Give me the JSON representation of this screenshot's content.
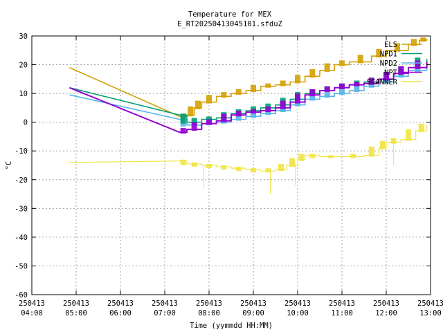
{
  "chart_data": {
    "type": "line",
    "title": "Temperature for MEX",
    "subtitle": "E_RT20250413045101.sfduZ",
    "xlabel": "Time (yymmdd HH:MM)",
    "ylabel": "°C",
    "xlim": [
      "2025-04-13 04:00",
      "2025-04-13 13:00"
    ],
    "ylim": [
      -60,
      30
    ],
    "grid": true,
    "legend_position": "top-right",
    "x_ticks": [
      {
        "date": "250413",
        "time": "04:00",
        "t": "04:00"
      },
      {
        "date": "250413",
        "time": "05:00",
        "t": "05:00"
      },
      {
        "date": "250413",
        "time": "06:00",
        "t": "06:00"
      },
      {
        "date": "250413",
        "time": "07:00",
        "t": "07:00"
      },
      {
        "date": "250413",
        "time": "08:00",
        "t": "08:00"
      },
      {
        "date": "250413",
        "time": "09:00",
        "t": "09:00"
      },
      {
        "date": "250413",
        "time": "10:00",
        "t": "10:00"
      },
      {
        "date": "250413",
        "time": "11:00",
        "t": "11:00"
      },
      {
        "date": "250413",
        "time": "12:00",
        "t": "12:00"
      },
      {
        "date": "250413",
        "time": "13:00",
        "t": "13:00"
      }
    ],
    "y_ticks": [
      30,
      20,
      10,
      0,
      -10,
      -20,
      -30,
      -40,
      -50,
      -60
    ],
    "series": [
      {
        "name": "ELS",
        "color": "#d4a000",
        "points": [
          [
            "04:51",
            19
          ],
          [
            "07:20",
            2
          ],
          [
            "07:30",
            2.5
          ],
          [
            "07:40",
            5
          ],
          [
            "07:50",
            7
          ],
          [
            "08:10",
            9
          ],
          [
            "08:30",
            10
          ],
          [
            "08:50",
            11
          ],
          [
            "09:10",
            12.5
          ],
          [
            "09:30",
            13
          ],
          [
            "09:50",
            14
          ],
          [
            "10:10",
            16
          ],
          [
            "10:30",
            18
          ],
          [
            "10:50",
            20
          ],
          [
            "11:10",
            21
          ],
          [
            "11:40",
            23
          ],
          [
            "12:00",
            25
          ],
          [
            "12:30",
            27
          ],
          [
            "12:45",
            28.5
          ],
          [
            "12:55",
            29
          ]
        ]
      },
      {
        "name": "NPD1",
        "color": "#009e73",
        "points": [
          [
            "04:51",
            12
          ],
          [
            "07:20",
            2.5
          ],
          [
            "07:30",
            0
          ],
          [
            "07:50",
            1
          ],
          [
            "08:10",
            1.5
          ],
          [
            "08:30",
            3
          ],
          [
            "08:50",
            4
          ],
          [
            "09:10",
            5
          ],
          [
            "09:30",
            6
          ],
          [
            "09:50",
            8
          ],
          [
            "10:10",
            10
          ],
          [
            "10:30",
            11
          ],
          [
            "10:50",
            12
          ],
          [
            "11:10",
            13
          ],
          [
            "11:30",
            14
          ],
          [
            "11:50",
            15
          ],
          [
            "12:10",
            17
          ],
          [
            "12:30",
            19
          ],
          [
            "12:55",
            22
          ]
        ]
      },
      {
        "name": "NPD2",
        "color": "#56b4e9",
        "points": [
          [
            "04:51",
            9.5
          ],
          [
            "07:20",
            1
          ],
          [
            "07:30",
            -1
          ],
          [
            "07:50",
            -0.5
          ],
          [
            "08:10",
            0
          ],
          [
            "08:30",
            1
          ],
          [
            "08:50",
            2
          ],
          [
            "09:10",
            3
          ],
          [
            "09:30",
            4
          ],
          [
            "09:50",
            6
          ],
          [
            "10:10",
            8
          ],
          [
            "10:30",
            9
          ],
          [
            "10:50",
            10
          ],
          [
            "11:10",
            11
          ],
          [
            "11:30",
            12.5
          ],
          [
            "11:50",
            14
          ],
          [
            "12:10",
            16
          ],
          [
            "12:30",
            18
          ],
          [
            "12:55",
            20
          ]
        ]
      },
      {
        "name": "NPT",
        "color": "#9400d3",
        "points": [
          [
            "04:51",
            12
          ],
          [
            "07:20",
            -3.5
          ],
          [
            "07:30",
            -2.5
          ],
          [
            "07:50",
            -0.5
          ],
          [
            "08:10",
            0.5
          ],
          [
            "08:30",
            2.5
          ],
          [
            "08:50",
            3.5
          ],
          [
            "09:10",
            4
          ],
          [
            "09:30",
            5
          ],
          [
            "09:50",
            7
          ],
          [
            "10:10",
            9.5
          ],
          [
            "10:30",
            11
          ],
          [
            "10:50",
            12
          ],
          [
            "11:10",
            13
          ],
          [
            "11:30",
            13.5
          ],
          [
            "11:50",
            15
          ],
          [
            "12:10",
            17
          ],
          [
            "12:30",
            19
          ],
          [
            "12:55",
            21
          ]
        ]
      },
      {
        "name": "SCANNER",
        "color": "#f0e442",
        "points": [
          [
            "04:51",
            -14
          ],
          [
            "07:20",
            -13.5
          ],
          [
            "07:30",
            -14.5
          ],
          [
            "07:50",
            -15
          ],
          [
            "08:10",
            -15.5
          ],
          [
            "08:30",
            -16
          ],
          [
            "08:50",
            -16.5
          ],
          [
            "09:10",
            -17
          ],
          [
            "09:30",
            -16.5
          ],
          [
            "09:45",
            -15
          ],
          [
            "10:00",
            -13
          ],
          [
            "10:10",
            -11.5
          ],
          [
            "10:30",
            -12
          ],
          [
            "11:00",
            -12
          ],
          [
            "11:30",
            -11.5
          ],
          [
            "11:50",
            -9
          ],
          [
            "12:00",
            -7
          ],
          [
            "12:20",
            -6
          ],
          [
            "12:40",
            -3
          ],
          [
            "12:55",
            -1
          ]
        ]
      }
    ],
    "spikes": [
      {
        "series": "SCANNER",
        "t": "07:53",
        "from": -15,
        "to": -23
      },
      {
        "series": "SCANNER",
        "t": "09:23",
        "from": -16.5,
        "to": -25
      },
      {
        "series": "SCANNER",
        "t": "09:57",
        "from": -14,
        "to": -22
      },
      {
        "series": "SCANNER",
        "t": "12:10",
        "from": -6,
        "to": -15
      }
    ]
  }
}
